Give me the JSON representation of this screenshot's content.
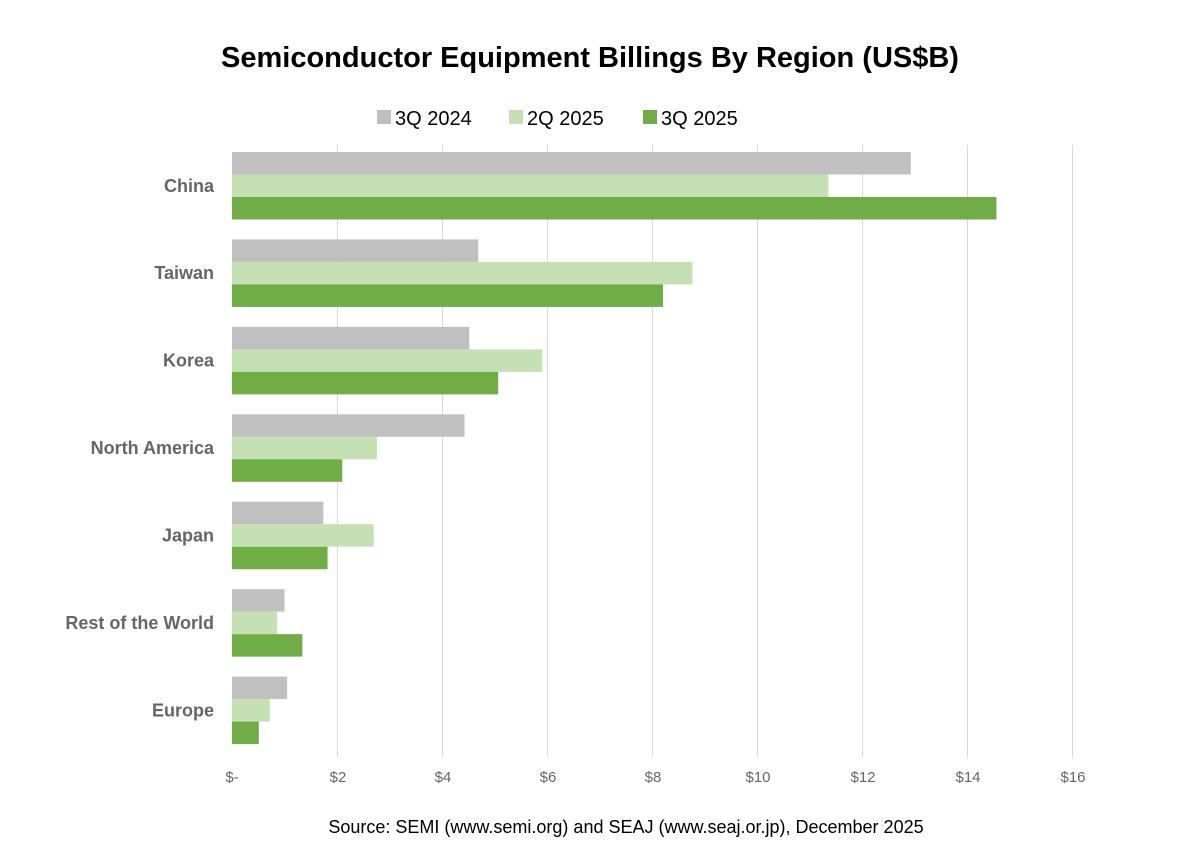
{
  "chart_data": {
    "type": "bar",
    "orientation": "horizontal",
    "title": "Semiconductor Equipment Billings By Region (US$B)",
    "categories": [
      "China",
      "Taiwan",
      "Korea",
      "North America",
      "Japan",
      "Rest of the World",
      "Europe"
    ],
    "series": [
      {
        "name": "3Q 2024",
        "color": "#c0c0c0",
        "values": [
          12.93,
          4.69,
          4.52,
          4.43,
          1.74,
          1.0,
          1.05
        ]
      },
      {
        "name": "2Q 2025",
        "color": "#c5e0b4",
        "values": [
          11.36,
          8.77,
          5.91,
          2.76,
          2.7,
          0.86,
          0.72
        ]
      },
      {
        "name": "3Q 2025",
        "color": "#70ad47",
        "values": [
          14.56,
          8.21,
          5.07,
          2.1,
          1.82,
          1.34,
          0.51
        ]
      }
    ],
    "xlim": [
      0,
      16
    ],
    "xticks": [
      0,
      2,
      4,
      6,
      8,
      10,
      12,
      14,
      16
    ],
    "xtick_labels": [
      "$-",
      "$2",
      "$4",
      "$6",
      "$8",
      "$10",
      "$12",
      "$14",
      "$16"
    ],
    "legend_position": "top",
    "grid": "vertical",
    "source": "Source: SEMI (www.semi.org) and SEAJ (www.seaj.or.jp), December 2025"
  }
}
